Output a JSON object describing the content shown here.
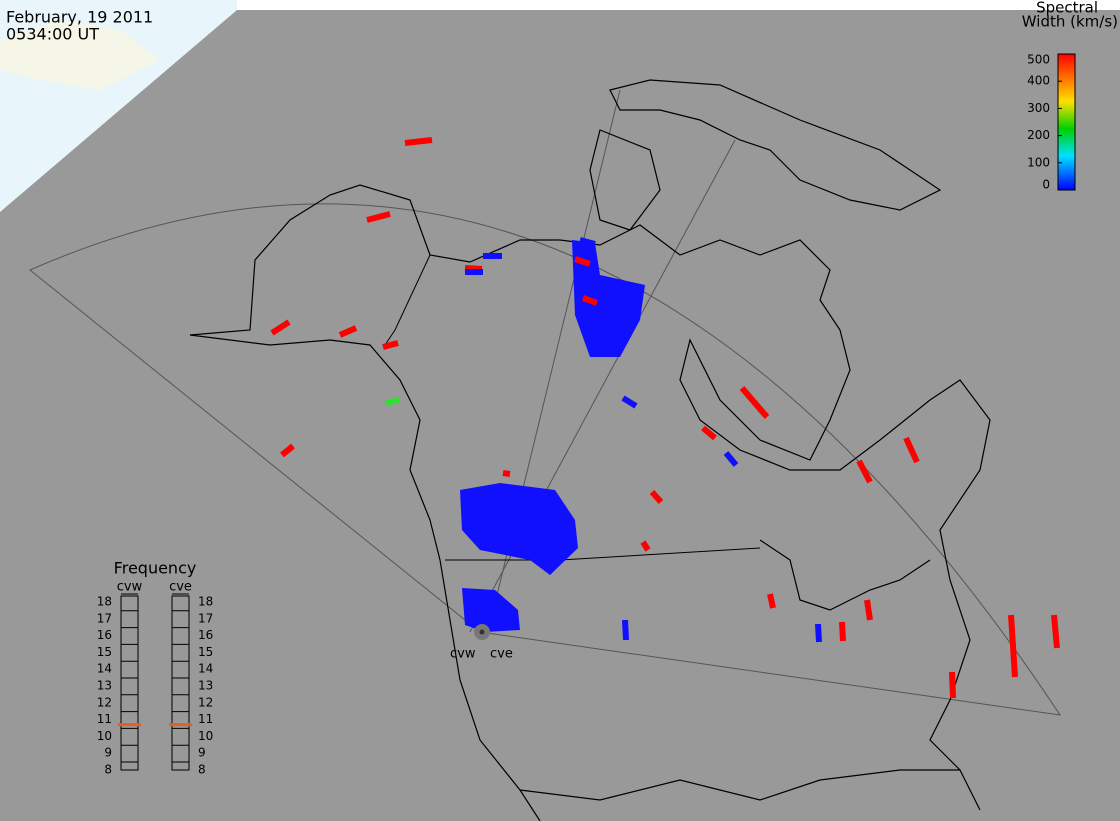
{
  "header": {
    "date": "February, 19 2011",
    "time": "0534:00 UT"
  },
  "colorbar": {
    "title_lines": [
      "Spectral",
      "Width (km/s)"
    ],
    "range": [
      0,
      500
    ],
    "ticks": [
      0,
      100,
      200,
      300,
      400,
      500
    ]
  },
  "frequency": {
    "title": "Frequency",
    "ylim": [
      8,
      18
    ],
    "yticks": [
      8,
      9,
      10,
      11,
      12,
      13,
      14,
      15,
      16,
      17,
      18
    ],
    "radars": [
      {
        "name": "cvw",
        "value": 10.7,
        "color": "#e0602a"
      },
      {
        "name": "cve",
        "value": 10.7,
        "color": "#e0602a"
      }
    ]
  },
  "radar_labels": [
    "cvw",
    "cve"
  ]
}
